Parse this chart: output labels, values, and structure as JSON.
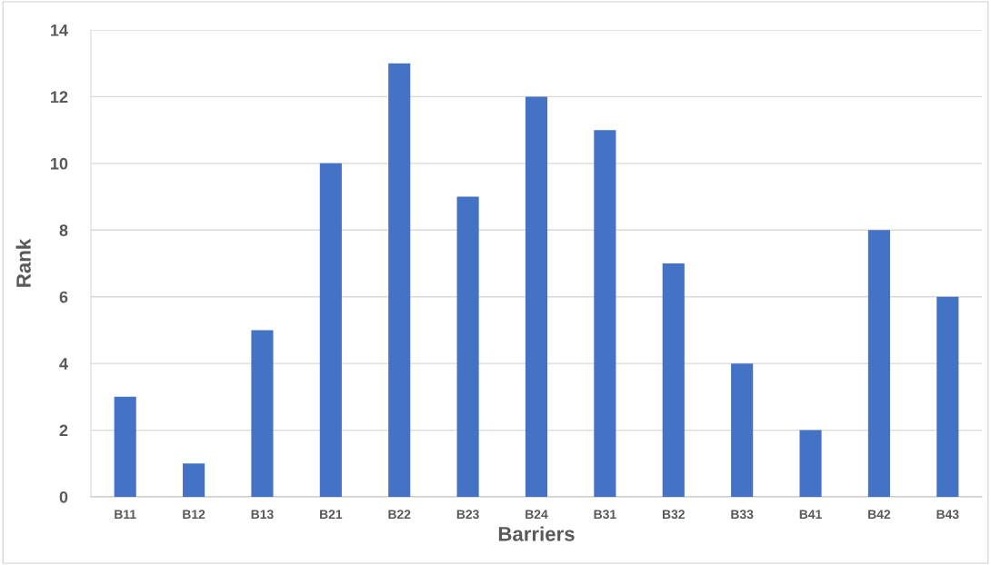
{
  "chart_data": {
    "type": "bar",
    "xlabel": "Barriers",
    "ylabel": "Rank",
    "categories": [
      "B11",
      "B12",
      "B13",
      "B21",
      "B22",
      "B23",
      "B24",
      "B31",
      "B32",
      "B33",
      "B41",
      "B42",
      "B43"
    ],
    "values": [
      3,
      1,
      5,
      10,
      13,
      9,
      12,
      11,
      7,
      4,
      2,
      8,
      6
    ],
    "color": "#4472c4",
    "ylim": [
      0,
      14
    ],
    "yticks": [
      0,
      2,
      4,
      6,
      8,
      10,
      12,
      14
    ],
    "grid": "y",
    "legend": false
  }
}
